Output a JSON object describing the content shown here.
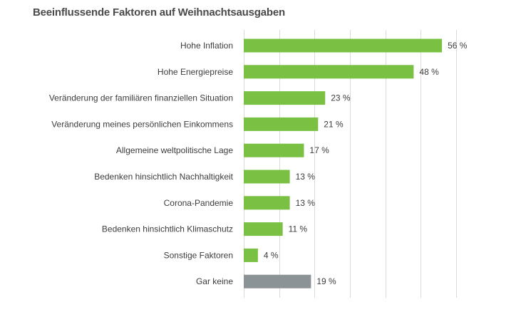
{
  "colors": {
    "bar": "#7ac143",
    "bar_highlight": "#8c9396",
    "grid": "#dadada",
    "text": "#3c3c3c",
    "title": "#4a4a4a"
  },
  "chart_data": {
    "type": "bar",
    "orientation": "horizontal",
    "title": "Beeinflussende Faktoren auf Weihnachtsausgaben",
    "xlabel": "",
    "ylabel": "",
    "xlim": [
      0,
      60
    ],
    "grid": true,
    "categories": [
      "Hohe Inflation",
      "Hohe Energiepreise",
      "Veränderung der familiären finanziellen Situation",
      "Veränderung meines persönlichen Einkommens",
      "Allgemeine weltpolitische Lage",
      "Bedenken hinsichtlich Nachhaltigkeit",
      "Corona-Pandemie",
      "Bedenken hinsichtlich Klimaschutz",
      "Sonstige Faktoren",
      "Gar keine"
    ],
    "values": [
      56,
      48,
      23,
      21,
      17,
      13,
      13,
      11,
      4,
      19
    ],
    "value_labels": [
      "56 %",
      "48 %",
      "23 %",
      "21 %",
      "17 %",
      "13 %",
      "13 %",
      "11 %",
      "4 %",
      "19 %"
    ],
    "highlight_category": "Gar keine"
  }
}
